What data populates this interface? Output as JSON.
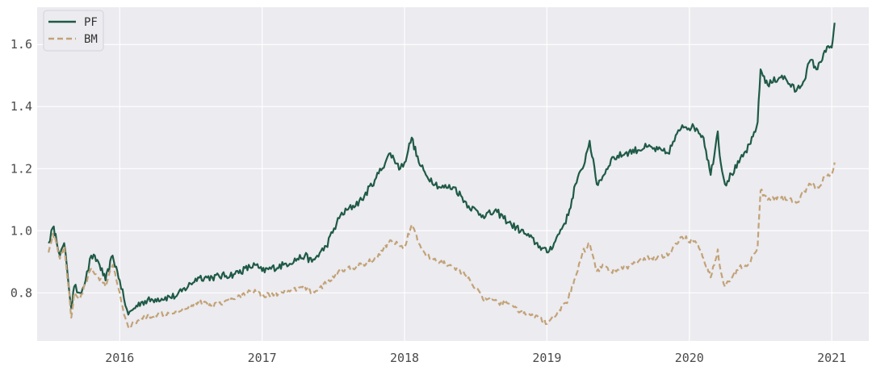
{
  "colors": {
    "plot_background": "#ebebf0",
    "grid": "#ffffff",
    "pf": "#1f5a45",
    "bm": "#c3a276",
    "text": "#4a4a4a"
  },
  "chart_data": {
    "type": "line",
    "title": "",
    "xlabel": "",
    "ylabel": "",
    "xlim": [
      2015.42,
      2021.26
    ],
    "ylim": [
      0.645,
      1.72
    ],
    "x_ticks": [
      2016,
      2017,
      2018,
      2019,
      2020,
      2021
    ],
    "x_tick_labels": [
      "2016",
      "2017",
      "2018",
      "2019",
      "2020",
      "2021"
    ],
    "y_ticks": [
      0.8,
      1.0,
      1.2,
      1.4,
      1.6
    ],
    "y_tick_labels": [
      "0.8",
      "1.0",
      "1.2",
      "1.4",
      "1.6"
    ],
    "grid": true,
    "legend": {
      "location": "top-left",
      "entries": [
        "PF",
        "BM"
      ]
    },
    "series": [
      {
        "name": "PF",
        "style": "solid",
        "x": [
          2015.5,
          2015.53,
          2015.55,
          2015.58,
          2015.61,
          2015.64,
          2015.66,
          2015.68,
          2015.72,
          2015.76,
          2015.8,
          2015.85,
          2015.9,
          2015.95,
          2016.0,
          2016.03,
          2016.06,
          2016.1,
          2016.15,
          2016.25,
          2016.4,
          2016.55,
          2016.65,
          2016.8,
          2016.95,
          2017.0,
          2017.15,
          2017.3,
          2017.35,
          2017.45,
          2017.55,
          2017.7,
          2017.8,
          2017.9,
          2017.97,
          2018.0,
          2018.05,
          2018.1,
          2018.15,
          2018.25,
          2018.35,
          2018.45,
          2018.55,
          2018.65,
          2018.75,
          2018.85,
          2018.95,
          2019.0,
          2019.05,
          2019.15,
          2019.2,
          2019.25,
          2019.3,
          2019.35,
          2019.4,
          2019.45,
          2019.55,
          2019.7,
          2019.85,
          2019.95,
          2020.05,
          2020.1,
          2020.15,
          2020.2,
          2020.22,
          2020.25,
          2020.35,
          2020.43,
          2020.48,
          2020.5,
          2020.55,
          2020.65,
          2020.75,
          2020.8,
          2020.85,
          2020.9,
          2020.95,
          2021.0,
          2021.02
        ],
        "values": [
          0.96,
          1.01,
          0.99,
          0.92,
          0.96,
          0.83,
          0.75,
          0.82,
          0.8,
          0.84,
          0.92,
          0.9,
          0.84,
          0.92,
          0.84,
          0.78,
          0.73,
          0.75,
          0.77,
          0.78,
          0.79,
          0.85,
          0.85,
          0.86,
          0.89,
          0.87,
          0.89,
          0.92,
          0.9,
          0.95,
          1.05,
          1.1,
          1.17,
          1.25,
          1.2,
          1.22,
          1.3,
          1.22,
          1.18,
          1.14,
          1.14,
          1.08,
          1.05,
          1.06,
          1.02,
          0.99,
          0.95,
          0.93,
          0.96,
          1.05,
          1.15,
          1.2,
          1.29,
          1.15,
          1.18,
          1.23,
          1.25,
          1.27,
          1.25,
          1.34,
          1.33,
          1.3,
          1.18,
          1.32,
          1.22,
          1.15,
          1.22,
          1.28,
          1.35,
          1.52,
          1.47,
          1.5,
          1.45,
          1.48,
          1.55,
          1.52,
          1.58,
          1.59,
          1.67
        ]
      },
      {
        "name": "BM",
        "style": "dashed",
        "x": [
          2015.5,
          2015.53,
          2015.55,
          2015.58,
          2015.61,
          2015.64,
          2015.66,
          2015.68,
          2015.72,
          2015.76,
          2015.8,
          2015.85,
          2015.9,
          2015.95,
          2016.0,
          2016.03,
          2016.06,
          2016.1,
          2016.15,
          2016.25,
          2016.4,
          2016.55,
          2016.65,
          2016.8,
          2016.95,
          2017.0,
          2017.15,
          2017.3,
          2017.35,
          2017.45,
          2017.55,
          2017.7,
          2017.8,
          2017.9,
          2017.97,
          2018.0,
          2018.05,
          2018.1,
          2018.15,
          2018.25,
          2018.35,
          2018.45,
          2018.55,
          2018.65,
          2018.75,
          2018.85,
          2018.95,
          2019.0,
          2019.05,
          2019.15,
          2019.2,
          2019.25,
          2019.3,
          2019.35,
          2019.4,
          2019.45,
          2019.55,
          2019.7,
          2019.85,
          2019.95,
          2020.05,
          2020.1,
          2020.15,
          2020.2,
          2020.22,
          2020.25,
          2020.35,
          2020.43,
          2020.48,
          2020.5,
          2020.55,
          2020.65,
          2020.75,
          2020.8,
          2020.85,
          2020.9,
          2020.95,
          2021.0,
          2021.02
        ],
        "values": [
          0.93,
          0.99,
          0.97,
          0.91,
          0.95,
          0.82,
          0.72,
          0.8,
          0.78,
          0.83,
          0.88,
          0.85,
          0.82,
          0.89,
          0.8,
          0.73,
          0.69,
          0.7,
          0.72,
          0.73,
          0.74,
          0.77,
          0.76,
          0.78,
          0.81,
          0.79,
          0.8,
          0.82,
          0.8,
          0.83,
          0.87,
          0.89,
          0.91,
          0.97,
          0.95,
          0.95,
          1.02,
          0.96,
          0.92,
          0.9,
          0.88,
          0.85,
          0.78,
          0.77,
          0.76,
          0.73,
          0.72,
          0.7,
          0.72,
          0.78,
          0.85,
          0.93,
          0.96,
          0.87,
          0.89,
          0.87,
          0.88,
          0.91,
          0.92,
          0.98,
          0.96,
          0.91,
          0.85,
          0.94,
          0.87,
          0.82,
          0.88,
          0.9,
          0.95,
          1.13,
          1.1,
          1.11,
          1.09,
          1.12,
          1.15,
          1.14,
          1.17,
          1.18,
          1.22
        ]
      }
    ]
  }
}
